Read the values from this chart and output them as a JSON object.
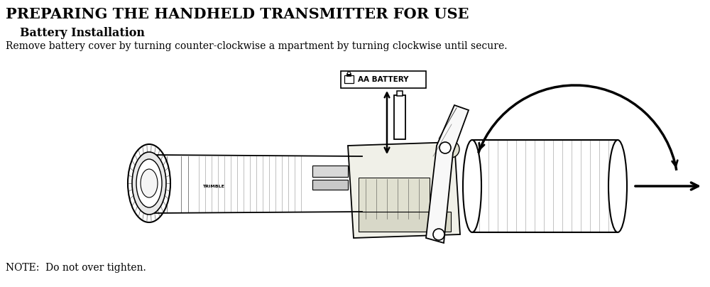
{
  "title_line1": "Preparing the Handheld Transmitter for Use",
  "subtitle": "Battery Installation",
  "body_text": "Remove battery cover by turning counter-clockwise a mpartment by turning clockwise until secure.",
  "note_text": "NOTE:  Do not over tighten.",
  "bg_color": "#ffffff",
  "text_color": "#000000",
  "title_fontsize": 15,
  "subtitle_fontsize": 11.5,
  "body_fontsize": 10,
  "note_fontsize": 10,
  "label_text": "AA BATTERY",
  "fig_width": 10.0,
  "fig_height": 4.04
}
